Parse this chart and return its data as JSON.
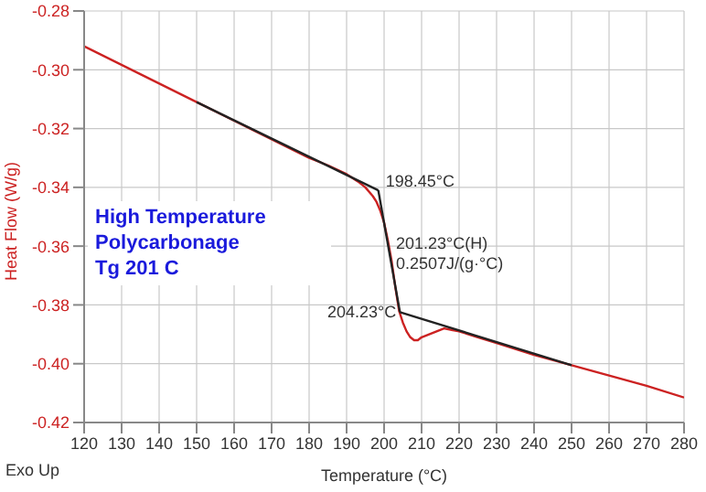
{
  "chart_data": {
    "type": "line",
    "xlabel": "Temperature (°C)",
    "ylabel": "Heat Flow (W/g)",
    "series": [
      {
        "color": "#cc2222",
        "x": [
          120,
          135,
          150,
          165,
          180,
          185,
          190,
          193,
          195,
          197,
          198,
          199,
          200,
          201,
          202,
          203,
          204,
          205,
          206,
          207,
          208,
          209,
          210,
          212,
          214,
          216,
          218,
          220,
          225,
          230,
          240,
          250,
          260,
          270,
          280
        ],
        "values": [
          -0.292,
          -0.3015,
          -0.311,
          -0.3205,
          -0.33,
          -0.3325,
          -0.3355,
          -0.338,
          -0.34,
          -0.343,
          -0.345,
          -0.348,
          -0.352,
          -0.358,
          -0.365,
          -0.374,
          -0.382,
          -0.386,
          -0.389,
          -0.391,
          -0.392,
          -0.392,
          -0.391,
          -0.39,
          -0.389,
          -0.388,
          -0.3885,
          -0.389,
          -0.391,
          -0.393,
          -0.397,
          -0.4005,
          -0.404,
          -0.4075,
          -0.4115
        ]
      },
      {
        "type": "line",
        "color": "#222222",
        "x": [
          150,
          198.45
        ],
        "values": [
          -0.311,
          -0.341
        ]
      },
      {
        "type": "line",
        "color": "#222222",
        "x": [
          198.45,
          204.23
        ],
        "values": [
          -0.341,
          -0.3825
        ]
      },
      {
        "type": "line",
        "color": "#222222",
        "x": [
          204.23,
          250
        ],
        "values": [
          -0.3825,
          -0.4005
        ]
      }
    ],
    "xlim": [
      120,
      280
    ],
    "xticks": [
      120,
      130,
      140,
      150,
      160,
      170,
      180,
      190,
      200,
      210,
      220,
      230,
      240,
      250,
      260,
      270,
      280
    ],
    "ylim": [
      -0.42,
      -0.28
    ],
    "yticks": [
      {
        "value": -0.42,
        "label": "-0.42"
      },
      {
        "value": -0.4,
        "label": "-0.40"
      },
      {
        "value": -0.38,
        "label": "-0.38"
      },
      {
        "value": -0.36,
        "label": "-0.36"
      },
      {
        "value": -0.34,
        "label": "-0.34"
      },
      {
        "value": -0.32,
        "label": "-0.32"
      },
      {
        "value": -0.3,
        "label": "-0.30"
      },
      {
        "value": -0.28,
        "label": "-0.28"
      }
    ],
    "grid": true,
    "legend": false,
    "marker": "none",
    "line_style": "solid",
    "annotations": [
      "Exo Up",
      "High Temperature",
      "Polycarbonage",
      "Tg 201 C",
      {
        "text": "198.45°C",
        "x": 198.45,
        "y": -0.341
      },
      {
        "text": "201.23°C(H)",
        "x": 201.23,
        "y": -0.3615
      },
      {
        "text": "0.2507J/(g·°C)",
        "x": 201.23,
        "y": -0.3615
      },
      {
        "text": "204.23°C",
        "x": 204.23,
        "y": -0.3825
      }
    ]
  }
}
